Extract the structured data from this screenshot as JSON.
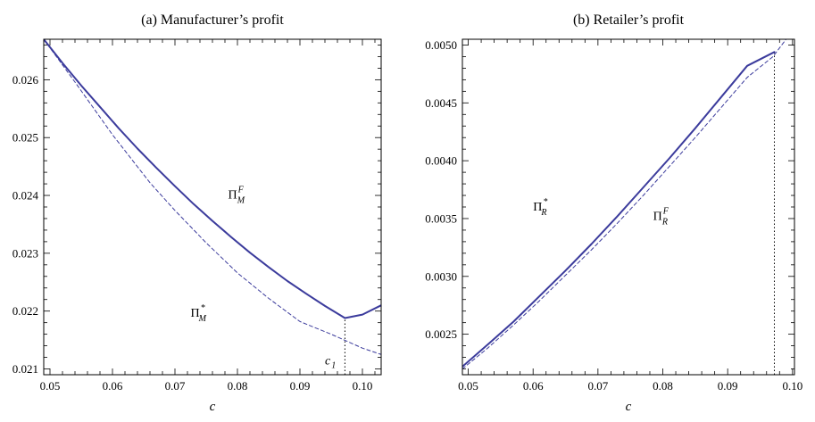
{
  "colors": {
    "curve": "#3b3b9c",
    "frame": "#000000",
    "background": "#ffffff"
  },
  "chart_data": [
    {
      "type": "line",
      "title": "(a) Manufacturer’s profit",
      "xlabel": "c",
      "ylabel": "",
      "xlim": [
        0.049,
        0.103
      ],
      "ylim": [
        0.0209,
        0.0267
      ],
      "xticks": [
        "0.05",
        "0.06",
        "0.07",
        "0.08",
        "0.09",
        "0.10"
      ],
      "yticks": [
        "0.021",
        "0.022",
        "0.023",
        "0.024",
        "0.025",
        "0.026"
      ],
      "grid": false,
      "series": [
        {
          "style": "solid",
          "x": [
            0.049,
            0.052,
            0.055,
            0.058,
            0.061,
            0.064,
            0.067,
            0.07,
            0.073,
            0.076,
            0.079,
            0.082,
            0.085,
            0.088,
            0.091,
            0.094,
            0.0972,
            0.1,
            0.103
          ],
          "y": [
            0.0267,
            0.02629,
            0.0259,
            0.02553,
            0.02516,
            0.02481,
            0.02448,
            0.02416,
            0.02385,
            0.02356,
            0.02328,
            0.02301,
            0.02276,
            0.02252,
            0.0223,
            0.02209,
            0.02188,
            0.02194,
            0.0221
          ]
        },
        {
          "style": "dashed",
          "x": [
            0.049,
            0.054,
            0.06,
            0.066,
            0.07,
            0.075,
            0.08,
            0.085,
            0.09,
            0.095,
            0.1,
            0.103
          ],
          "y": [
            0.0267,
            0.02596,
            0.02505,
            0.02422,
            0.02374,
            0.02318,
            0.02266,
            0.02222,
            0.02182,
            0.0216,
            0.02136,
            0.02125
          ]
        }
      ],
      "annotations": [
        {
          "text": "Π",
          "sup": "F",
          "sub": "M",
          "x": 0.0785,
          "y": 0.02395
        },
        {
          "text": "Π",
          "sup": "*",
          "sub": "M",
          "x": 0.0725,
          "y": 0.0219
        },
        {
          "text": "c",
          "sub": "1",
          "x": 0.094,
          "y": 0.02108
        }
      ],
      "vlines": [
        {
          "x": 0.0972,
          "style": "dotted"
        }
      ]
    },
    {
      "type": "line",
      "title": "(b) Retailer’s profit",
      "xlabel": "c",
      "ylabel": "",
      "xlim": [
        0.0491,
        0.1003
      ],
      "ylim": [
        0.00215,
        0.00505
      ],
      "xticks": [
        "0.05",
        "0.06",
        "0.07",
        "0.08",
        "0.09",
        "0.10"
      ],
      "yticks": [
        "0.0025",
        "0.0030",
        "0.0035",
        "0.0040",
        "0.0045",
        "0.0050"
      ],
      "grid": false,
      "series": [
        {
          "style": "solid",
          "x": [
            0.0491,
            0.053,
            0.057,
            0.061,
            0.065,
            0.069,
            0.073,
            0.077,
            0.081,
            0.085,
            0.089,
            0.093,
            0.0972
          ],
          "y": [
            0.00222,
            0.00241,
            0.00261,
            0.00283,
            0.00305,
            0.00328,
            0.00352,
            0.00377,
            0.00402,
            0.00428,
            0.00455,
            0.00482,
            0.00494
          ]
        },
        {
          "style": "dashed",
          "x": [
            0.0491,
            0.053,
            0.057,
            0.061,
            0.065,
            0.069,
            0.073,
            0.077,
            0.081,
            0.085,
            0.089,
            0.093,
            0.097,
            0.099
          ],
          "y": [
            0.0022,
            0.00238,
            0.00258,
            0.00279,
            0.00301,
            0.00323,
            0.00346,
            0.0037,
            0.00395,
            0.0042,
            0.00446,
            0.00472,
            0.0049,
            0.00505
          ]
        }
      ],
      "annotations": [
        {
          "text": "Π",
          "sup": "*",
          "sub": "R",
          "x": 0.06,
          "y": 0.00357
        },
        {
          "text": "Π",
          "sup": "F",
          "sub": "R",
          "x": 0.0785,
          "y": 0.00349
        }
      ],
      "vlines": [
        {
          "x": 0.0972,
          "style": "dotted"
        }
      ]
    }
  ]
}
